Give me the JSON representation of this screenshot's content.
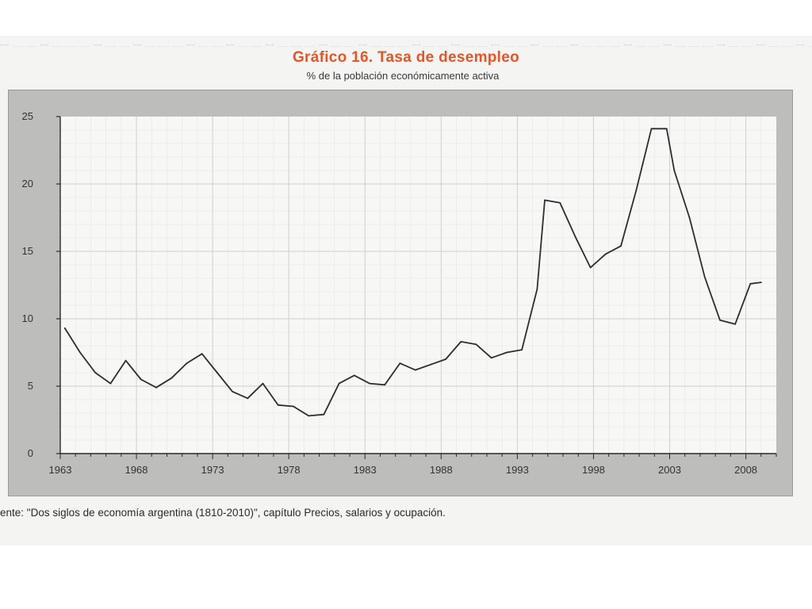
{
  "chart_data": {
    "type": "line",
    "title": "Gráfico 16. Tasa de desempleo",
    "subtitle": "% de la población económicamente activa",
    "xlabel": "",
    "ylabel": "",
    "xlim": [
      1963,
      2010
    ],
    "ylim": [
      0,
      25
    ],
    "x_ticks": [
      1963,
      1968,
      1973,
      1978,
      1983,
      1988,
      1993,
      1998,
      2003,
      2008
    ],
    "y_ticks": [
      0,
      5,
      10,
      15,
      20,
      25
    ],
    "x_tick_labels": [
      "1963",
      "1968",
      "1973",
      "1978",
      "1983",
      "1988",
      "1993",
      "1998",
      "2003",
      "2008"
    ],
    "y_tick_labels": [
      "0",
      "5",
      "10",
      "15",
      "20",
      "25"
    ],
    "grid": true,
    "series": [
      {
        "x": [
          1963.3,
          1964.3,
          1965.3,
          1966.3,
          1967.3,
          1968.3,
          1969.3,
          1970.3,
          1971.3,
          1972.3,
          1973.3,
          1974.3,
          1975.3,
          1976.3,
          1977.3,
          1978.3,
          1979.3,
          1980.3,
          1981.3,
          1982.3,
          1983.3,
          1984.3,
          1985.3,
          1986.3,
          1987.3,
          1988.3,
          1989.3,
          1990.3,
          1991.3,
          1992.3,
          1993.3,
          1994.3,
          1994.8,
          1995.8,
          1996.8,
          1997.8,
          1998.8,
          1999.8,
          2000.8,
          2001.8,
          2002.8,
          2003.3,
          2004.3,
          2005.3,
          2006.3,
          2007.3,
          2008.3,
          2009.0
        ],
        "values": [
          9.3,
          7.5,
          6.0,
          5.2,
          6.9,
          5.5,
          4.9,
          5.6,
          6.7,
          7.4,
          6.0,
          4.6,
          4.1,
          5.2,
          3.6,
          3.5,
          2.8,
          2.9,
          5.2,
          5.8,
          5.2,
          5.1,
          6.7,
          6.2,
          6.6,
          7.0,
          8.3,
          8.1,
          7.1,
          7.5,
          7.7,
          12.2,
          18.8,
          18.6,
          16.1,
          13.8,
          14.8,
          15.4,
          19.5,
          24.1,
          24.1,
          21.0,
          17.5,
          13.1,
          9.9,
          9.6,
          12.6,
          12.7
        ]
      }
    ]
  },
  "source_note": "ente: \"Dos siglos de economía argentina (1810-2010)\", capítulo Precios, salarios y ocupación."
}
